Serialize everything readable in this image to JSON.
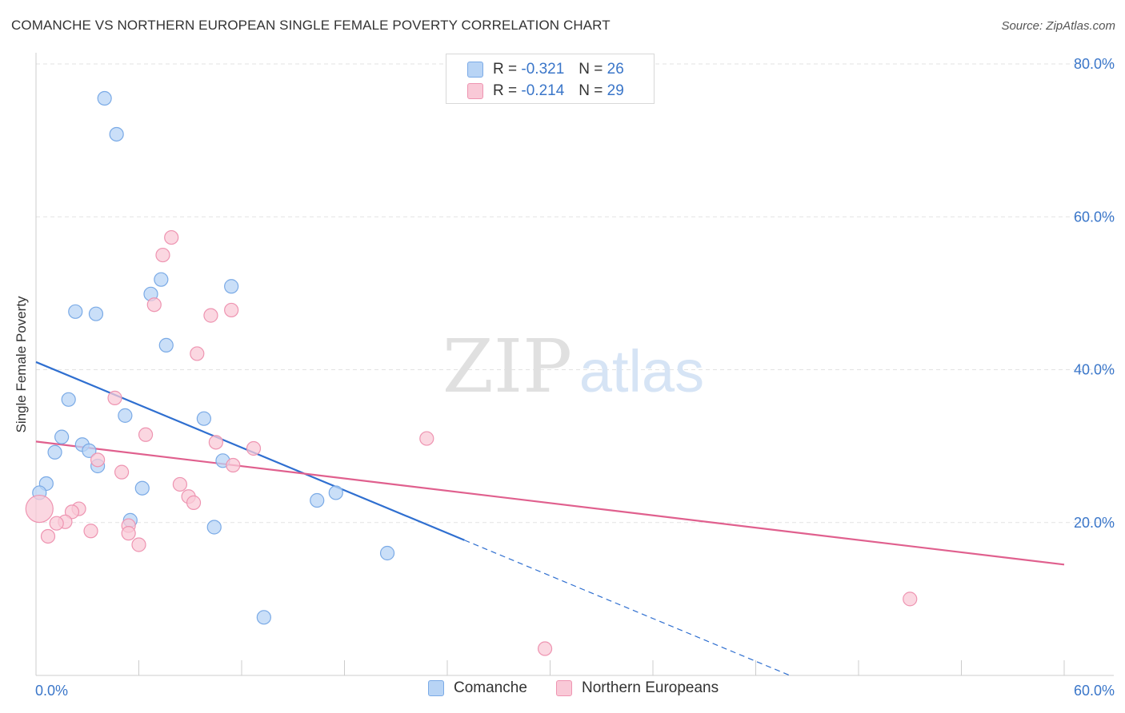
{
  "title": "COMANCHE VS NORTHERN EUROPEAN SINGLE FEMALE POVERTY CORRELATION CHART",
  "source": "Source: ZipAtlas.com",
  "watermark": {
    "zip": "ZIP",
    "atlas": "atlas"
  },
  "colors": {
    "comanche_fill": "#b8d4f5",
    "comanche_stroke": "#7aaae6",
    "comanche_line": "#2f6fd0",
    "northern_fill": "#f9c9d7",
    "northern_stroke": "#ee94b1",
    "northern_line": "#e0608e",
    "tick_label": "#3a76c9",
    "grid": "#e3e3e3"
  },
  "legend": {
    "r_label": "R =",
    "n_label": "N =",
    "comanche": {
      "r": "-0.321",
      "n": "26"
    },
    "northern": {
      "r": "-0.214",
      "n": "29"
    }
  },
  "chart_data": {
    "type": "scatter",
    "ylabel": "Single Female Poverty",
    "xlabel": "",
    "xlim": [
      0,
      60
    ],
    "ylim": [
      0,
      80
    ],
    "x_tick_labels": [
      "0.0%",
      "60.0%"
    ],
    "y_ticks": [
      20,
      40,
      60,
      80
    ],
    "y_tick_labels": [
      "20.0%",
      "40.0%",
      "60.0%",
      "80.0%"
    ],
    "grid": true,
    "legend_position": "top-center",
    "series": [
      {
        "name": "Comanche",
        "r": -0.321,
        "n": 26,
        "trend": {
          "x0": 0,
          "y0": 41.0,
          "x1": 25.0,
          "y1": 17.7,
          "dash_to_x": 44.0
        },
        "points": [
          [
            4.0,
            75.5
          ],
          [
            4.7,
            70.8
          ],
          [
            7.3,
            51.8
          ],
          [
            11.4,
            50.9
          ],
          [
            6.7,
            49.9
          ],
          [
            2.3,
            47.6
          ],
          [
            3.5,
            47.3
          ],
          [
            7.6,
            43.2
          ],
          [
            1.9,
            36.1
          ],
          [
            5.2,
            34.0
          ],
          [
            9.8,
            33.6
          ],
          [
            1.5,
            31.2
          ],
          [
            2.7,
            30.2
          ],
          [
            3.1,
            29.4
          ],
          [
            1.1,
            29.2
          ],
          [
            10.9,
            28.1
          ],
          [
            3.6,
            27.4
          ],
          [
            0.6,
            25.1
          ],
          [
            6.2,
            24.5
          ],
          [
            0.2,
            23.9
          ],
          [
            16.4,
            22.9
          ],
          [
            17.5,
            23.9
          ],
          [
            5.5,
            20.3
          ],
          [
            10.4,
            19.4
          ],
          [
            20.5,
            16.0
          ],
          [
            13.3,
            7.6
          ]
        ]
      },
      {
        "name": "Northern Europeans",
        "r": -0.214,
        "n": 29,
        "trend": {
          "x0": 0,
          "y0": 30.6,
          "x1": 60,
          "y1": 14.5
        },
        "points": [
          [
            7.9,
            57.3
          ],
          [
            7.4,
            55.0
          ],
          [
            6.9,
            48.5
          ],
          [
            11.4,
            47.8
          ],
          [
            10.2,
            47.1
          ],
          [
            9.4,
            42.1
          ],
          [
            4.6,
            36.3
          ],
          [
            6.4,
            31.5
          ],
          [
            22.8,
            31.0
          ],
          [
            10.5,
            30.5
          ],
          [
            12.7,
            29.7
          ],
          [
            3.6,
            28.2
          ],
          [
            11.5,
            27.5
          ],
          [
            5.0,
            26.6
          ],
          [
            8.4,
            25.0
          ],
          [
            8.9,
            23.4
          ],
          [
            9.2,
            22.6
          ],
          [
            0.2,
            21.8
          ],
          [
            2.5,
            21.8
          ],
          [
            2.1,
            21.4
          ],
          [
            1.7,
            20.1
          ],
          [
            1.2,
            19.9
          ],
          [
            5.4,
            19.6
          ],
          [
            3.2,
            18.9
          ],
          [
            5.4,
            18.6
          ],
          [
            0.7,
            18.2
          ],
          [
            6.0,
            17.1
          ],
          [
            51.0,
            10.0
          ],
          [
            29.7,
            3.5
          ]
        ]
      }
    ]
  }
}
